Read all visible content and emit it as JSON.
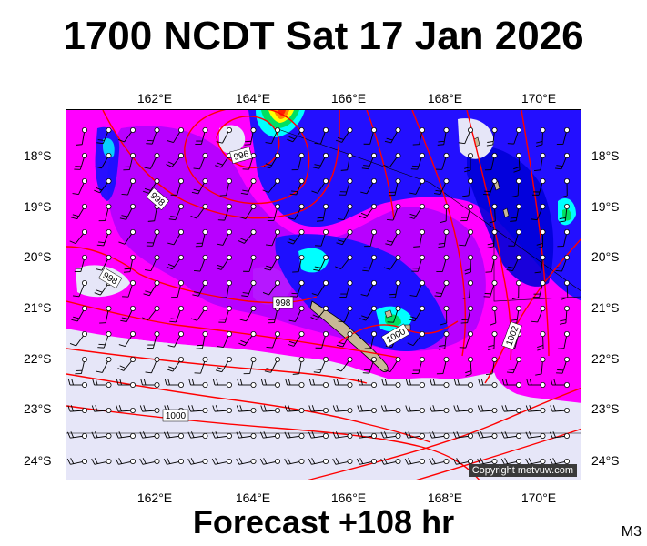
{
  "title": "1700 NCDT Sat 17 Jan 2026",
  "footer": "Forecast +108 hr",
  "model_id": "M3",
  "copyright": "Copyright metvuw.com",
  "longitude_labels": [
    "162°E",
    "164°E",
    "166°E",
    "168°E",
    "170°E"
  ],
  "latitude_labels": [
    "18°S",
    "19°S",
    "20°S",
    "21°S",
    "22°S",
    "23°S",
    "24°S"
  ],
  "isobar_labels": [
    "996",
    "998",
    "998",
    "998",
    "1000",
    "1002",
    "1000"
  ],
  "colors": {
    "background": "#e6e6f8",
    "magenta": "#ff00ff",
    "purple": "#b000ff",
    "blue": "#1010ff",
    "deep_blue": "#0000d8",
    "cyan": "#00ffff",
    "green": "#00e060",
    "yellow": "#ffff00",
    "orange": "#ff8000",
    "red": "#ff2000",
    "isobar": "#ff0000",
    "coast": "#c0b090"
  },
  "map_icons": [
    "wind-barb-icon",
    "station-circle-icon"
  ]
}
